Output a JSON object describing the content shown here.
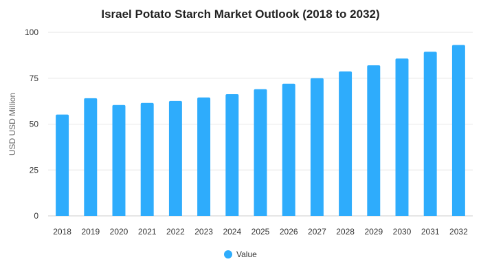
{
  "chart_data": {
    "type": "bar",
    "title": "Israel Potato Starch Market Outlook (2018 to 2032)",
    "xlabel": "",
    "ylabel": "USD USD Million",
    "ylim": [
      0,
      100
    ],
    "yticks": [
      0,
      25,
      50,
      75,
      100
    ],
    "categories": [
      "2018",
      "2019",
      "2020",
      "2021",
      "2022",
      "2023",
      "2024",
      "2025",
      "2026",
      "2027",
      "2028",
      "2029",
      "2030",
      "2031",
      "2032"
    ],
    "series": [
      {
        "name": "Value",
        "color": "#2eacfc",
        "values": [
          55.2,
          64.1,
          60.4,
          61.5,
          62.6,
          64.5,
          66.3,
          69.0,
          72.0,
          75.0,
          78.7,
          82.0,
          85.7,
          89.4,
          93.1
        ]
      }
    ],
    "grid": true,
    "legend_position": "bottom"
  }
}
